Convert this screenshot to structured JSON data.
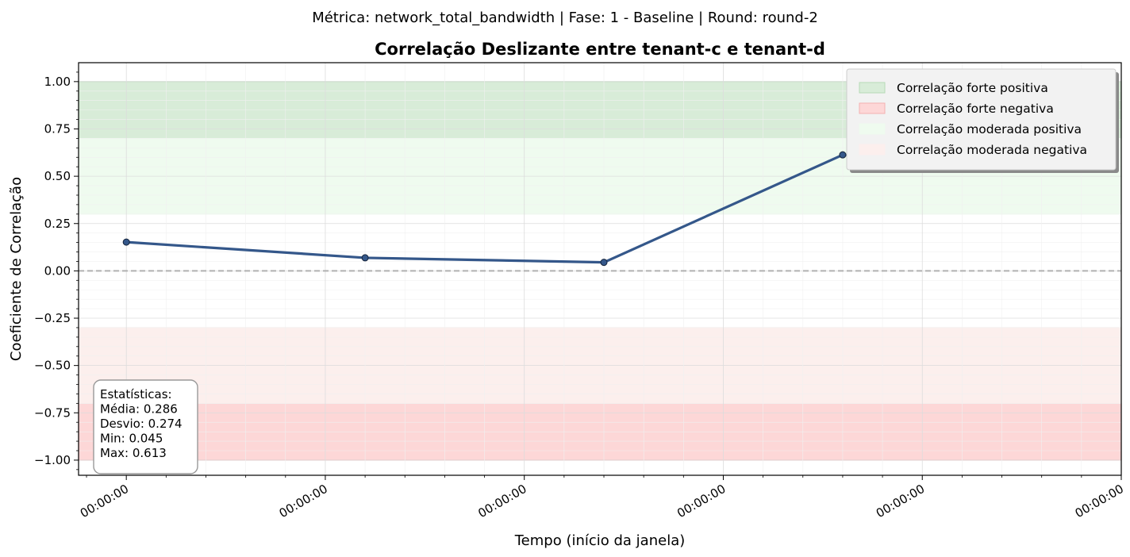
{
  "suptitle": "Métrica: network_total_bandwidth | Fase: 1 - Baseline | Round: round-2",
  "chart_data": {
    "type": "line",
    "title": "Correlação Deslizante entre tenant-c e tenant-d",
    "xlabel": "Tempo (início da janela)",
    "ylabel": "Coeficiente de Correlação",
    "ylim": [
      -1.08,
      1.1
    ],
    "xlim": [
      -0.12,
      2.5
    ],
    "grid": true,
    "x_ticks": [
      0,
      0.5,
      1,
      1.5,
      2,
      2.5
    ],
    "x_tick_labels": [
      "00:00:00",
      "00:00:00",
      "00:00:00",
      "00:00:00",
      "00:00:00",
      "00:00:00"
    ],
    "y_ticks": [
      1.0,
      0.75,
      0.5,
      0.25,
      0.0,
      -0.25,
      -0.5,
      -0.75,
      -1.0
    ],
    "y_tick_labels": [
      "1.00",
      "0.75",
      "0.50",
      "0.25",
      "0.00",
      "−0.25",
      "−0.50",
      "−0.75",
      "−1.00"
    ],
    "series": [
      {
        "color": "#34578a",
        "x": [
          0,
          0.6,
          1.2,
          1.8,
          2.4
        ],
        "y": [
          0.152,
          0.069,
          0.045,
          0.613,
          0.55
        ]
      }
    ],
    "reference_line": {
      "y": 0.0,
      "style": "dashed",
      "color": "#b0b0b0"
    },
    "bands": [
      {
        "label": "Correlação forte positiva",
        "from": 0.7,
        "to": 1.0,
        "fill": "#d8ecd8",
        "stroke": "#b7dab7"
      },
      {
        "label": "Correlação forte negativa",
        "from": -1.0,
        "to": -0.7,
        "fill": "#fdd7d7",
        "stroke": "#f4b0b0"
      },
      {
        "label": "Correlação moderada positiva",
        "from": 0.3,
        "to": 0.7,
        "fill": "#effbef",
        "stroke": "#effbef"
      },
      {
        "label": "Correlação moderada negativa",
        "from": -0.7,
        "to": -0.3,
        "fill": "#fcefed",
        "stroke": "#fcefed"
      }
    ],
    "legend_position": "top-right",
    "stats_box": {
      "lines": [
        "Estatísticas:",
        "Média: 0.286",
        "Desvio: 0.274",
        "Min: 0.045",
        "Max: 0.613"
      ]
    }
  }
}
